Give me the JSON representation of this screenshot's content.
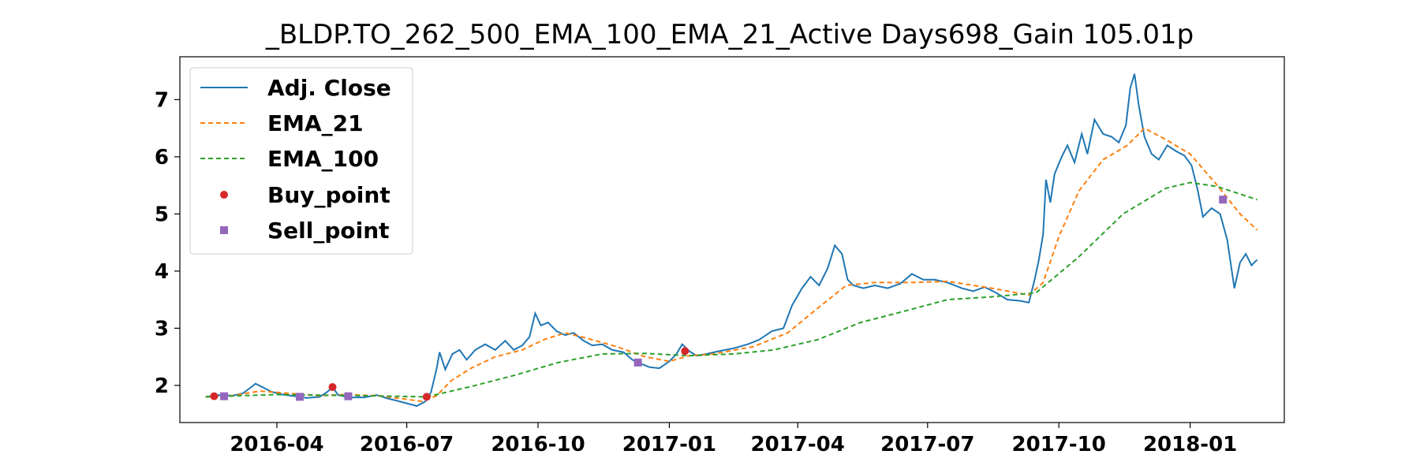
{
  "chart_data": {
    "type": "line",
    "title": "_BLDP.TO_262_500_EMA_100_EMA_21_Active Days698_Gain 105.01p",
    "xlabel": "",
    "ylabel": "",
    "xlim": [
      "2016-01-24",
      "2018-03-08"
    ],
    "ylim": [
      1.35,
      7.75
    ],
    "x_ticks": [
      "2016-04-01",
      "2016-07-01",
      "2016-10-01",
      "2017-01-01",
      "2017-04-01",
      "2017-07-01",
      "2017-10-01",
      "2018-01-01"
    ],
    "x_tick_labels": [
      "2016-04",
      "2016-07",
      "2016-10",
      "2017-01",
      "2017-04",
      "2017-07",
      "2017-10",
      "2018-01"
    ],
    "y_ticks": [
      2,
      3,
      4,
      5,
      6,
      7
    ],
    "grid": false,
    "legend_position": "upper-left",
    "colors": {
      "adj_close": "#1f77b4",
      "ema_21": "#ff7f0e",
      "ema_100": "#2ca02c",
      "buy_point": "#d62728",
      "sell_point": "#9467bd"
    },
    "series": [
      {
        "name": "Adj. Close",
        "style": "solid",
        "points": [
          [
            "2016-02-11",
            1.8
          ],
          [
            "2016-02-20",
            1.83
          ],
          [
            "2016-03-01",
            1.82
          ],
          [
            "2016-03-08",
            1.86
          ],
          [
            "2016-03-13",
            1.95
          ],
          [
            "2016-03-17",
            2.03
          ],
          [
            "2016-03-22",
            1.97
          ],
          [
            "2016-03-28",
            1.89
          ],
          [
            "2016-04-05",
            1.84
          ],
          [
            "2016-04-14",
            1.81
          ],
          [
            "2016-04-22",
            1.78
          ],
          [
            "2016-05-01",
            1.8
          ],
          [
            "2016-05-06",
            1.88
          ],
          [
            "2016-05-10",
            1.97
          ],
          [
            "2016-05-14",
            1.83
          ],
          [
            "2016-05-22",
            1.79
          ],
          [
            "2016-06-01",
            1.79
          ],
          [
            "2016-06-10",
            1.83
          ],
          [
            "2016-06-18",
            1.77
          ],
          [
            "2016-06-26",
            1.72
          ],
          [
            "2016-07-02",
            1.68
          ],
          [
            "2016-07-08",
            1.64
          ],
          [
            "2016-07-14",
            1.72
          ],
          [
            "2016-07-18",
            1.88
          ],
          [
            "2016-07-22",
            2.3
          ],
          [
            "2016-07-24",
            2.58
          ],
          [
            "2016-07-28",
            2.28
          ],
          [
            "2016-08-02",
            2.55
          ],
          [
            "2016-08-07",
            2.62
          ],
          [
            "2016-08-12",
            2.45
          ],
          [
            "2016-08-18",
            2.62
          ],
          [
            "2016-08-25",
            2.72
          ],
          [
            "2016-09-01",
            2.62
          ],
          [
            "2016-09-08",
            2.78
          ],
          [
            "2016-09-14",
            2.62
          ],
          [
            "2016-09-20",
            2.7
          ],
          [
            "2016-09-25",
            2.85
          ],
          [
            "2016-09-29",
            3.26
          ],
          [
            "2016-10-03",
            3.05
          ],
          [
            "2016-10-08",
            3.1
          ],
          [
            "2016-10-14",
            2.95
          ],
          [
            "2016-10-20",
            2.88
          ],
          [
            "2016-10-26",
            2.92
          ],
          [
            "2016-11-02",
            2.78
          ],
          [
            "2016-11-08",
            2.7
          ],
          [
            "2016-11-15",
            2.72
          ],
          [
            "2016-11-22",
            2.62
          ],
          [
            "2016-11-30",
            2.58
          ],
          [
            "2016-12-06",
            2.45
          ],
          [
            "2016-12-12",
            2.38
          ],
          [
            "2016-12-18",
            2.32
          ],
          [
            "2016-12-25",
            2.3
          ],
          [
            "2017-01-01",
            2.42
          ],
          [
            "2017-01-06",
            2.55
          ],
          [
            "2017-01-10",
            2.72
          ],
          [
            "2017-01-15",
            2.6
          ],
          [
            "2017-01-20",
            2.52
          ],
          [
            "2017-01-27",
            2.55
          ],
          [
            "2017-02-05",
            2.6
          ],
          [
            "2017-02-15",
            2.65
          ],
          [
            "2017-02-25",
            2.72
          ],
          [
            "2017-03-05",
            2.8
          ],
          [
            "2017-03-14",
            2.95
          ],
          [
            "2017-03-22",
            3.0
          ],
          [
            "2017-03-28",
            3.4
          ],
          [
            "2017-04-04",
            3.7
          ],
          [
            "2017-04-10",
            3.9
          ],
          [
            "2017-04-16",
            3.75
          ],
          [
            "2017-04-22",
            4.05
          ],
          [
            "2017-04-27",
            4.45
          ],
          [
            "2017-05-02",
            4.3
          ],
          [
            "2017-05-06",
            3.85
          ],
          [
            "2017-05-10",
            3.75
          ],
          [
            "2017-05-17",
            3.7
          ],
          [
            "2017-05-25",
            3.75
          ],
          [
            "2017-06-03",
            3.7
          ],
          [
            "2017-06-12",
            3.78
          ],
          [
            "2017-06-20",
            3.95
          ],
          [
            "2017-06-28",
            3.85
          ],
          [
            "2017-07-06",
            3.85
          ],
          [
            "2017-07-15",
            3.8
          ],
          [
            "2017-07-25",
            3.7
          ],
          [
            "2017-08-02",
            3.65
          ],
          [
            "2017-08-10",
            3.72
          ],
          [
            "2017-08-18",
            3.62
          ],
          [
            "2017-08-26",
            3.5
          ],
          [
            "2017-09-04",
            3.48
          ],
          [
            "2017-09-10",
            3.45
          ],
          [
            "2017-09-14",
            3.85
          ],
          [
            "2017-09-17",
            4.2
          ],
          [
            "2017-09-20",
            4.65
          ],
          [
            "2017-09-22",
            5.6
          ],
          [
            "2017-09-25",
            5.2
          ],
          [
            "2017-09-28",
            5.7
          ],
          [
            "2017-10-03",
            6.0
          ],
          [
            "2017-10-07",
            6.2
          ],
          [
            "2017-10-12",
            5.9
          ],
          [
            "2017-10-17",
            6.4
          ],
          [
            "2017-10-21",
            6.05
          ],
          [
            "2017-10-26",
            6.65
          ],
          [
            "2017-11-01",
            6.4
          ],
          [
            "2017-11-07",
            6.35
          ],
          [
            "2017-11-12",
            6.25
          ],
          [
            "2017-11-17",
            6.55
          ],
          [
            "2017-11-20",
            7.2
          ],
          [
            "2017-11-23",
            7.45
          ],
          [
            "2017-11-26",
            6.9
          ],
          [
            "2017-11-30",
            6.35
          ],
          [
            "2017-12-05",
            6.05
          ],
          [
            "2017-12-10",
            5.95
          ],
          [
            "2017-12-16",
            6.2
          ],
          [
            "2017-12-22",
            6.1
          ],
          [
            "2017-12-28",
            6.02
          ],
          [
            "2018-01-02",
            5.85
          ],
          [
            "2018-01-06",
            5.45
          ],
          [
            "2018-01-10",
            4.95
          ],
          [
            "2018-01-16",
            5.1
          ],
          [
            "2018-01-22",
            5.0
          ],
          [
            "2018-01-27",
            4.55
          ],
          [
            "2018-02-01",
            3.7
          ],
          [
            "2018-02-05",
            4.15
          ],
          [
            "2018-02-09",
            4.3
          ],
          [
            "2018-02-13",
            4.1
          ],
          [
            "2018-02-17",
            4.2
          ]
        ]
      },
      {
        "name": "EMA_21",
        "style": "dashed",
        "points": [
          [
            "2016-02-11",
            1.8
          ],
          [
            "2016-03-01",
            1.82
          ],
          [
            "2016-03-20",
            1.9
          ],
          [
            "2016-04-10",
            1.86
          ],
          [
            "2016-05-01",
            1.82
          ],
          [
            "2016-05-20",
            1.84
          ],
          [
            "2016-06-10",
            1.82
          ],
          [
            "2016-06-30",
            1.76
          ],
          [
            "2016-07-12",
            1.72
          ],
          [
            "2016-07-22",
            1.82
          ],
          [
            "2016-08-01",
            2.08
          ],
          [
            "2016-08-15",
            2.3
          ],
          [
            "2016-09-01",
            2.5
          ],
          [
            "2016-09-20",
            2.62
          ],
          [
            "2016-10-05",
            2.8
          ],
          [
            "2016-10-20",
            2.92
          ],
          [
            "2016-11-05",
            2.82
          ],
          [
            "2016-11-25",
            2.68
          ],
          [
            "2016-12-15",
            2.5
          ],
          [
            "2017-01-01",
            2.42
          ],
          [
            "2017-01-15",
            2.52
          ],
          [
            "2017-02-01",
            2.55
          ],
          [
            "2017-03-01",
            2.68
          ],
          [
            "2017-03-25",
            2.92
          ],
          [
            "2017-04-15",
            3.35
          ],
          [
            "2017-05-05",
            3.75
          ],
          [
            "2017-05-25",
            3.8
          ],
          [
            "2017-06-20",
            3.8
          ],
          [
            "2017-07-15",
            3.82
          ],
          [
            "2017-08-15",
            3.7
          ],
          [
            "2017-09-10",
            3.58
          ],
          [
            "2017-09-20",
            3.8
          ],
          [
            "2017-10-01",
            4.6
          ],
          [
            "2017-10-15",
            5.4
          ],
          [
            "2017-11-01",
            5.95
          ],
          [
            "2017-11-18",
            6.2
          ],
          [
            "2017-11-30",
            6.5
          ],
          [
            "2017-12-15",
            6.3
          ],
          [
            "2018-01-01",
            6.05
          ],
          [
            "2018-01-20",
            5.5
          ],
          [
            "2018-02-05",
            5.0
          ],
          [
            "2018-02-17",
            4.72
          ]
        ]
      },
      {
        "name": "EMA_100",
        "style": "dashed",
        "points": [
          [
            "2016-02-11",
            1.8
          ],
          [
            "2016-04-01",
            1.84
          ],
          [
            "2016-06-01",
            1.82
          ],
          [
            "2016-07-15",
            1.8
          ],
          [
            "2016-08-15",
            1.98
          ],
          [
            "2016-09-15",
            2.18
          ],
          [
            "2016-10-15",
            2.4
          ],
          [
            "2016-11-15",
            2.55
          ],
          [
            "2016-12-15",
            2.56
          ],
          [
            "2017-01-15",
            2.52
          ],
          [
            "2017-02-15",
            2.55
          ],
          [
            "2017-03-15",
            2.62
          ],
          [
            "2017-04-15",
            2.8
          ],
          [
            "2017-05-15",
            3.1
          ],
          [
            "2017-06-15",
            3.3
          ],
          [
            "2017-07-15",
            3.5
          ],
          [
            "2017-08-15",
            3.55
          ],
          [
            "2017-09-15",
            3.62
          ],
          [
            "2017-10-15",
            4.25
          ],
          [
            "2017-11-15",
            5.0
          ],
          [
            "2017-12-15",
            5.45
          ],
          [
            "2018-01-01",
            5.55
          ],
          [
            "2018-01-20",
            5.48
          ],
          [
            "2018-02-17",
            5.25
          ]
        ]
      }
    ],
    "buy_points": [
      [
        "2016-02-17",
        1.81
      ],
      [
        "2016-05-10",
        1.97
      ],
      [
        "2016-07-15",
        1.8
      ],
      [
        "2017-01-12",
        2.6
      ]
    ],
    "sell_points": [
      [
        "2016-02-24",
        1.81
      ],
      [
        "2016-04-17",
        1.8
      ],
      [
        "2016-05-21",
        1.81
      ],
      [
        "2016-12-10",
        2.4
      ],
      [
        "2018-01-24",
        5.25
      ]
    ],
    "legend": [
      "Adj. Close",
      "EMA_21",
      "EMA_100",
      "Buy_point",
      "Sell_point"
    ]
  }
}
